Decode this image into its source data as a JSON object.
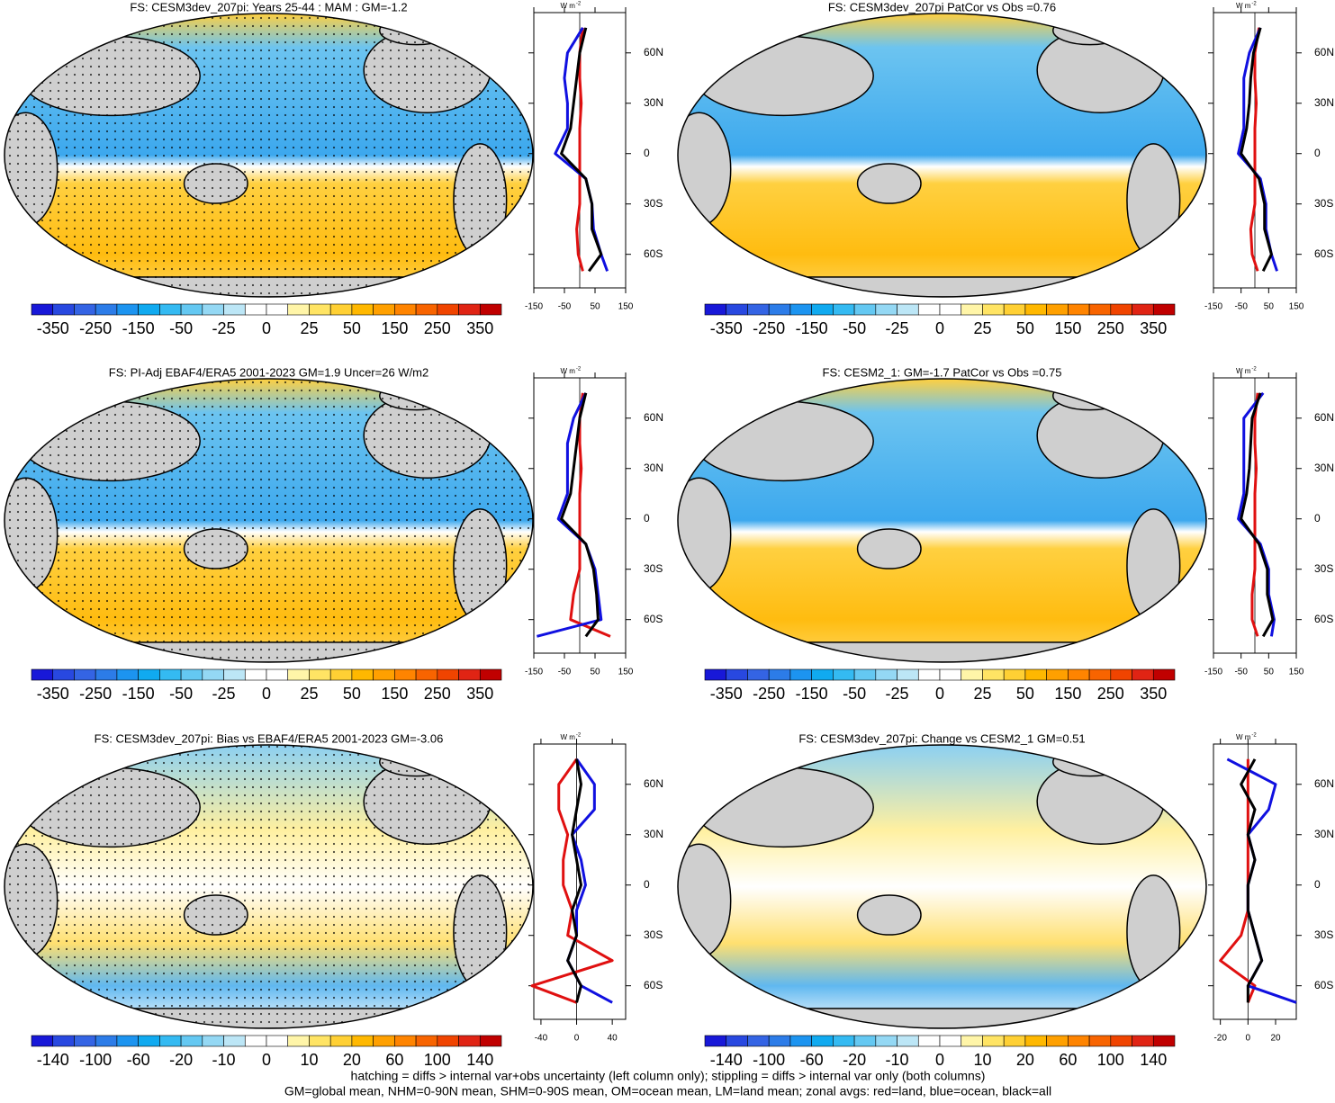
{
  "colorbar_colors": [
    "#1818d8",
    "#2848e0",
    "#3464e4",
    "#2c7ce8",
    "#1c94f0",
    "#10aaf0",
    "#34baf2",
    "#64c8f2",
    "#94d8f4",
    "#bce6f6",
    "#ffffff",
    "#ffffff",
    "#fff5a8",
    "#ffe464",
    "#ffd034",
    "#ffb800",
    "#ffa000",
    "#ff8400",
    "#f86400",
    "#f04400",
    "#e02414",
    "#c00000"
  ],
  "zonal_lats": [
    75,
    60,
    45,
    30,
    15,
    0,
    -15,
    -30,
    -45,
    -60,
    -70
  ],
  "zonal_ylim": [
    -80,
    84
  ],
  "zonal_yticks": [
    {
      "value": 60,
      "label": "60N"
    },
    {
      "value": 30,
      "label": "30N"
    },
    0,
    {
      "value": -30,
      "label": "30S"
    },
    {
      "value": -60,
      "label": "60S"
    }
  ],
  "zonal_units": {
    "base": "W m",
    "exp": "-2"
  },
  "panels": [
    {
      "title": "FS: CESM3dev_207pi: Years 25-44 : MAM : GM=-1.2",
      "colorbar_labels": [
        -350,
        -250,
        -150,
        -50,
        -25,
        0,
        25,
        50,
        150,
        250,
        350
      ],
      "xlim": [
        -150,
        150
      ],
      "xticks": [
        -150,
        -50,
        50,
        150
      ],
      "series": [
        {
          "color": "#e01010",
          "values": [
            10,
            0,
            0,
            5,
            0,
            0,
            0,
            0,
            -10,
            -5,
            10
          ]
        },
        {
          "color": "#1010e0",
          "values": [
            10,
            -40,
            -50,
            -40,
            -40,
            -80,
            20,
            40,
            45,
            70,
            90
          ]
        },
        {
          "color": "#000000",
          "values": [
            20,
            0,
            -10,
            -20,
            -30,
            -60,
            20,
            40,
            40,
            70,
            30
          ]
        }
      ]
    },
    {
      "title": "FS: CESM3dev_207pi PatCor vs Obs =0.76",
      "colorbar_labels": [
        -350,
        -250,
        -150,
        -50,
        -25,
        0,
        25,
        50,
        150,
        250,
        350
      ],
      "xlim": [
        -150,
        150
      ],
      "xticks": [
        -150,
        -50,
        50,
        150
      ],
      "series": [
        {
          "color": "#e01010",
          "values": [
            15,
            0,
            0,
            5,
            0,
            0,
            0,
            0,
            -15,
            -10,
            10
          ]
        },
        {
          "color": "#1010e0",
          "values": [
            20,
            -20,
            -40,
            -40,
            -40,
            -60,
            20,
            40,
            40,
            60,
            80
          ]
        },
        {
          "color": "#000000",
          "values": [
            20,
            -5,
            -15,
            -20,
            -30,
            -50,
            15,
            35,
            35,
            60,
            30
          ]
        }
      ]
    },
    {
      "title": "FS: PI-Adj EBAF4/ERA5 2001-2023 GM=1.9 Uncer=26 W/m2",
      "colorbar_labels": [
        -350,
        -250,
        -150,
        -50,
        -25,
        0,
        25,
        50,
        150,
        250,
        350
      ],
      "xlim": [
        -150,
        150
      ],
      "xticks": [
        -150,
        -50,
        50,
        150
      ],
      "series": [
        {
          "color": "#e01010",
          "values": [
            10,
            0,
            0,
            5,
            0,
            0,
            0,
            0,
            -20,
            -30,
            100
          ]
        },
        {
          "color": "#1010e0",
          "values": [
            20,
            -20,
            -40,
            -40,
            -40,
            -70,
            20,
            50,
            60,
            70,
            -140
          ]
        },
        {
          "color": "#000000",
          "values": [
            20,
            0,
            -10,
            -20,
            -30,
            -60,
            20,
            45,
            55,
            60,
            20
          ]
        }
      ]
    },
    {
      "title": "FS: CESM2_1: GM=-1.7 PatCor vs Obs =0.75",
      "colorbar_labels": [
        -350,
        -250,
        -150,
        -50,
        -25,
        0,
        25,
        50,
        150,
        250,
        350
      ],
      "xlim": [
        -150,
        150
      ],
      "xticks": [
        -150,
        -50,
        50,
        150
      ],
      "series": [
        {
          "color": "#e01010",
          "values": [
            10,
            0,
            0,
            5,
            0,
            0,
            0,
            0,
            -10,
            -10,
            10
          ]
        },
        {
          "color": "#1010e0",
          "values": [
            30,
            -40,
            -40,
            -40,
            -40,
            -60,
            20,
            50,
            50,
            70,
            60
          ]
        },
        {
          "color": "#000000",
          "values": [
            20,
            -10,
            -15,
            -20,
            -30,
            -50,
            15,
            45,
            45,
            65,
            30
          ]
        }
      ]
    },
    {
      "title": "FS: CESM3dev_207pi: Bias vs EBAF4/ERA5 2001-2023 GM=-3.06",
      "colorbar_labels": [
        -140,
        -100,
        -60,
        -20,
        -10,
        0,
        10,
        20,
        60,
        100,
        140
      ],
      "xlim": [
        -48,
        55
      ],
      "xticks": [
        -40,
        0,
        40
      ],
      "series": [
        {
          "color": "#e01010",
          "values": [
            0,
            -20,
            -20,
            -10,
            -15,
            -15,
            -5,
            -10,
            40,
            -50,
            0
          ]
        },
        {
          "color": "#1010e0",
          "values": [
            0,
            20,
            20,
            -5,
            5,
            10,
            0,
            0,
            -10,
            5,
            40
          ]
        },
        {
          "color": "#000000",
          "values": [
            0,
            5,
            0,
            -5,
            0,
            5,
            -5,
            0,
            -10,
            5,
            0
          ]
        }
      ]
    },
    {
      "title": "FS: CESM3dev_207pi: Change vs CESM2_1 GM=0.51",
      "colorbar_labels": [
        -140,
        -100,
        -60,
        -20,
        -10,
        0,
        10,
        20,
        60,
        100,
        140
      ],
      "xlim": [
        -25,
        35
      ],
      "xticks": [
        -20,
        0,
        20
      ],
      "series": [
        {
          "color": "#e01010",
          "values": [
            0,
            0,
            0,
            0,
            0,
            0,
            0,
            -5,
            -20,
            5,
            0
          ]
        },
        {
          "color": "#1010e0",
          "values": [
            -15,
            20,
            15,
            0,
            5,
            0,
            0,
            5,
            10,
            0,
            35
          ]
        },
        {
          "color": "#000000",
          "values": [
            5,
            -5,
            5,
            0,
            5,
            0,
            0,
            5,
            10,
            0,
            0
          ]
        }
      ]
    }
  ],
  "footer": [
    "hatching = diffs > internal var+obs uncertainty (left column only); stippling = diffs > internal var only (both columns)",
    "GM=global mean, NHM=0-90N mean, SHM=0-90S mean, OM=ocean mean, LM=land mean; zonal avgs: red=land, blue=ocean, black=all"
  ]
}
